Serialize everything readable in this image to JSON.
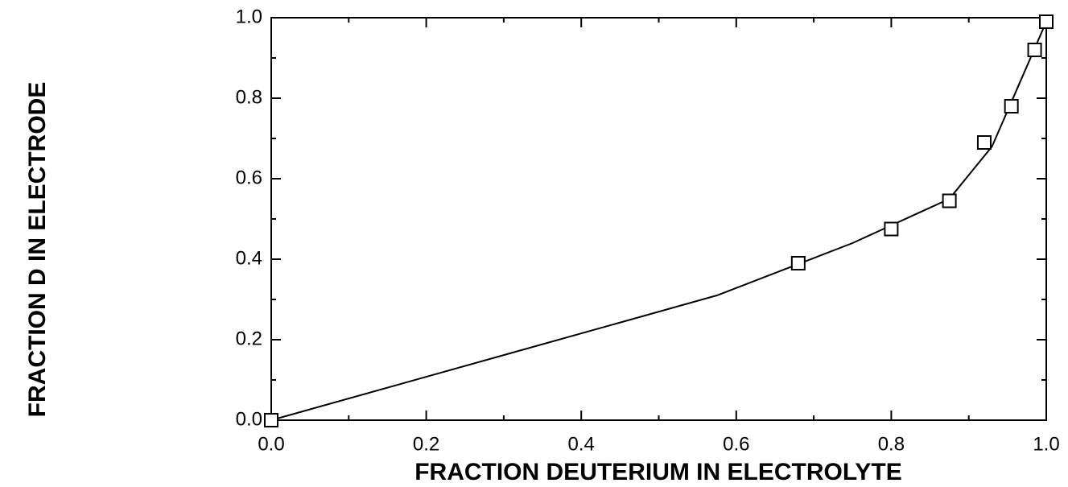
{
  "chart_data": {
    "type": "scatter",
    "xlabel": "FRACTION DEUTERIUM IN ELECTROLYTE",
    "ylabel": "FRACTION  D  IN ELECTRODE",
    "xlim": [
      0,
      1
    ],
    "ylim": [
      0,
      1
    ],
    "xticks": [
      {
        "value": 0,
        "label": "0.0"
      },
      0.2,
      0.4,
      0.6,
      0.8,
      {
        "value": 1,
        "label": "1.0"
      }
    ],
    "yticks": [
      {
        "value": 0,
        "label": "0.0"
      },
      0.2,
      0.4,
      0.6,
      0.8,
      {
        "value": 1,
        "label": "1.0"
      }
    ],
    "xminorticks": [
      0.1,
      0.3,
      0.5,
      0.7,
      0.9
    ],
    "yminorticks": [
      0.1,
      0.3,
      0.5,
      0.7,
      0.9
    ],
    "series": [
      {
        "kind": "markers",
        "color": "#000000",
        "x": [
          0,
          0.68,
          0.8,
          0.875,
          0.92,
          0.955,
          0.985,
          1.0
        ],
        "values": [
          0,
          0.39,
          0.475,
          0.545,
          0.69,
          0.78,
          0.92,
          0.99
        ]
      },
      {
        "kind": "line",
        "color": "#000000",
        "x": [
          0,
          0.575,
          0.75,
          0.875,
          0.93,
          1.0
        ],
        "values": [
          0,
          0.31,
          0.44,
          0.55,
          0.68,
          0.99
        ]
      }
    ]
  }
}
